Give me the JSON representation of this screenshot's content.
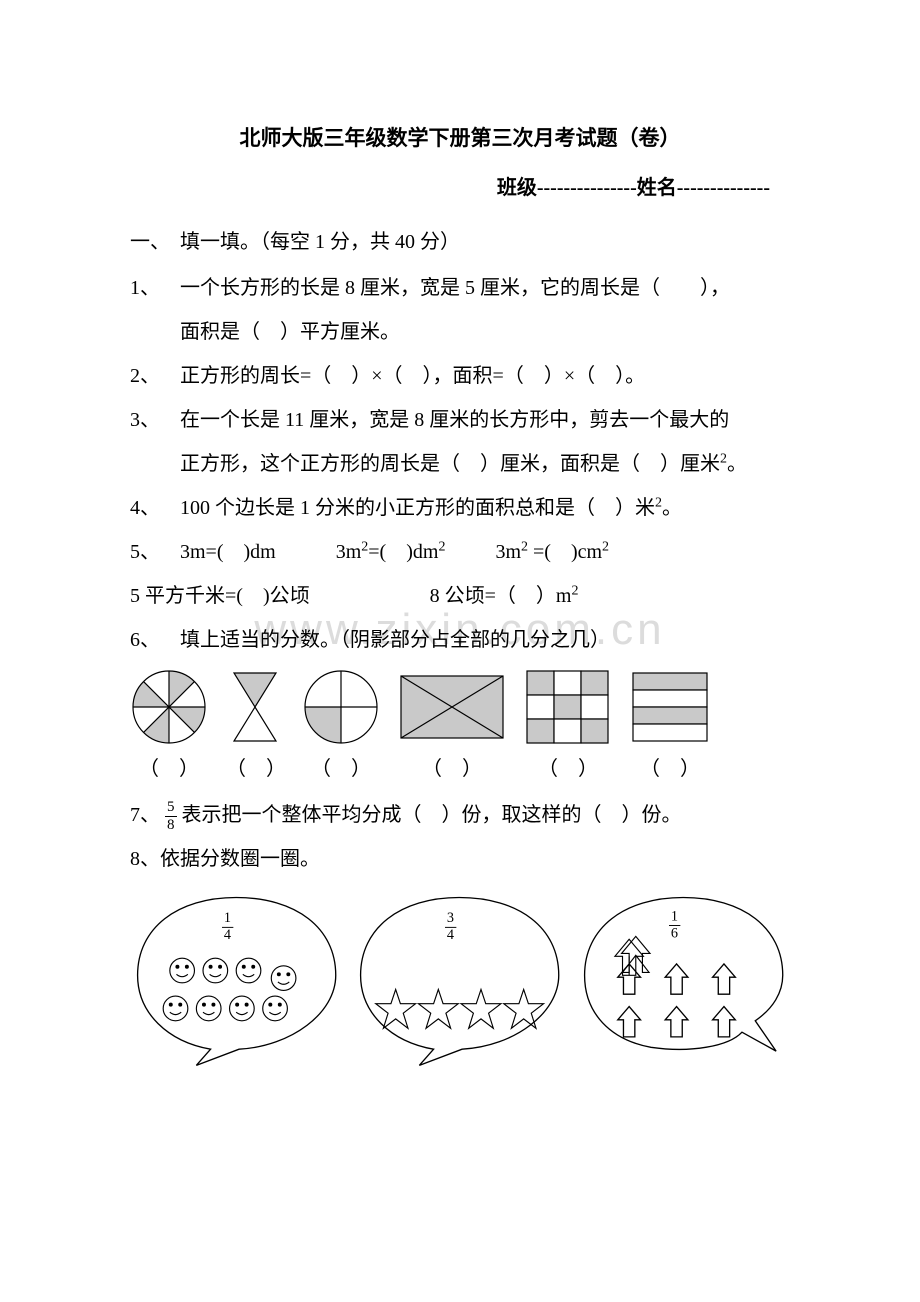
{
  "title": "北师大版三年级数学下册第三次月考试题（卷）",
  "subtitle": "班级---------------姓名--------------",
  "section1_head": "一、　填一填。（每空 1 分，共 40 分）",
  "q1_num": "1、",
  "q1_line1": "一个长方形的长是 8 厘米，宽是 5 厘米，它的周长是（　　），",
  "q1_line2": "面积是（　）平方厘米。",
  "q2_num": "2、",
  "q2": "正方形的周长=（　）×（　），面积=（　）×（　）。",
  "q3_num": "3、",
  "q3_line1": "在一个长是 11 厘米，宽是 8 厘米的长方形中，剪去一个最大的",
  "q3_line2": "正方形，这个正方形的周长是（　）厘米，面积是（　）厘米",
  "q4_num": "4、",
  "q4": "100 个边长是 1 分米的小正方形的面积总和是（　）米",
  "q5_num": "5、",
  "q5_a": "3m=(　)dm",
  "q5_b": "3m",
  "q5_b2": "=(　)dm",
  "q5_c": "3m",
  "q5_c2": "=(　)cm",
  "q5_line2_a": "5 平方千米=(　)公顷",
  "q5_line2_b": "8 公顷=（　）m",
  "q6_num": "6、",
  "q6": "填上适当的分数。（阴影部分占全部的几分之几）",
  "q7_pre": "7、",
  "q7_mid": "表示把一个整体平均分成（　）份，取这样的（　）份。",
  "q8": "8、依据分数圈一圈。",
  "watermark": "www.zixin.com.cn",
  "shape_answers": [
    "（　）",
    "（　）",
    "（　）",
    "（　）",
    "（　）",
    "（　）"
  ],
  "shapes": {
    "fill": "#c9c9c9",
    "stroke": "#000000",
    "stroke_width": 1.2
  },
  "fractions": {
    "f58": {
      "num": "5",
      "den": "8"
    },
    "f14": {
      "num": "1",
      "den": "4"
    },
    "f34": {
      "num": "3",
      "den": "4"
    },
    "f16": {
      "num": "1",
      "den": "6"
    }
  },
  "answer_widths": [
    78,
    58,
    78,
    108,
    88,
    80
  ]
}
